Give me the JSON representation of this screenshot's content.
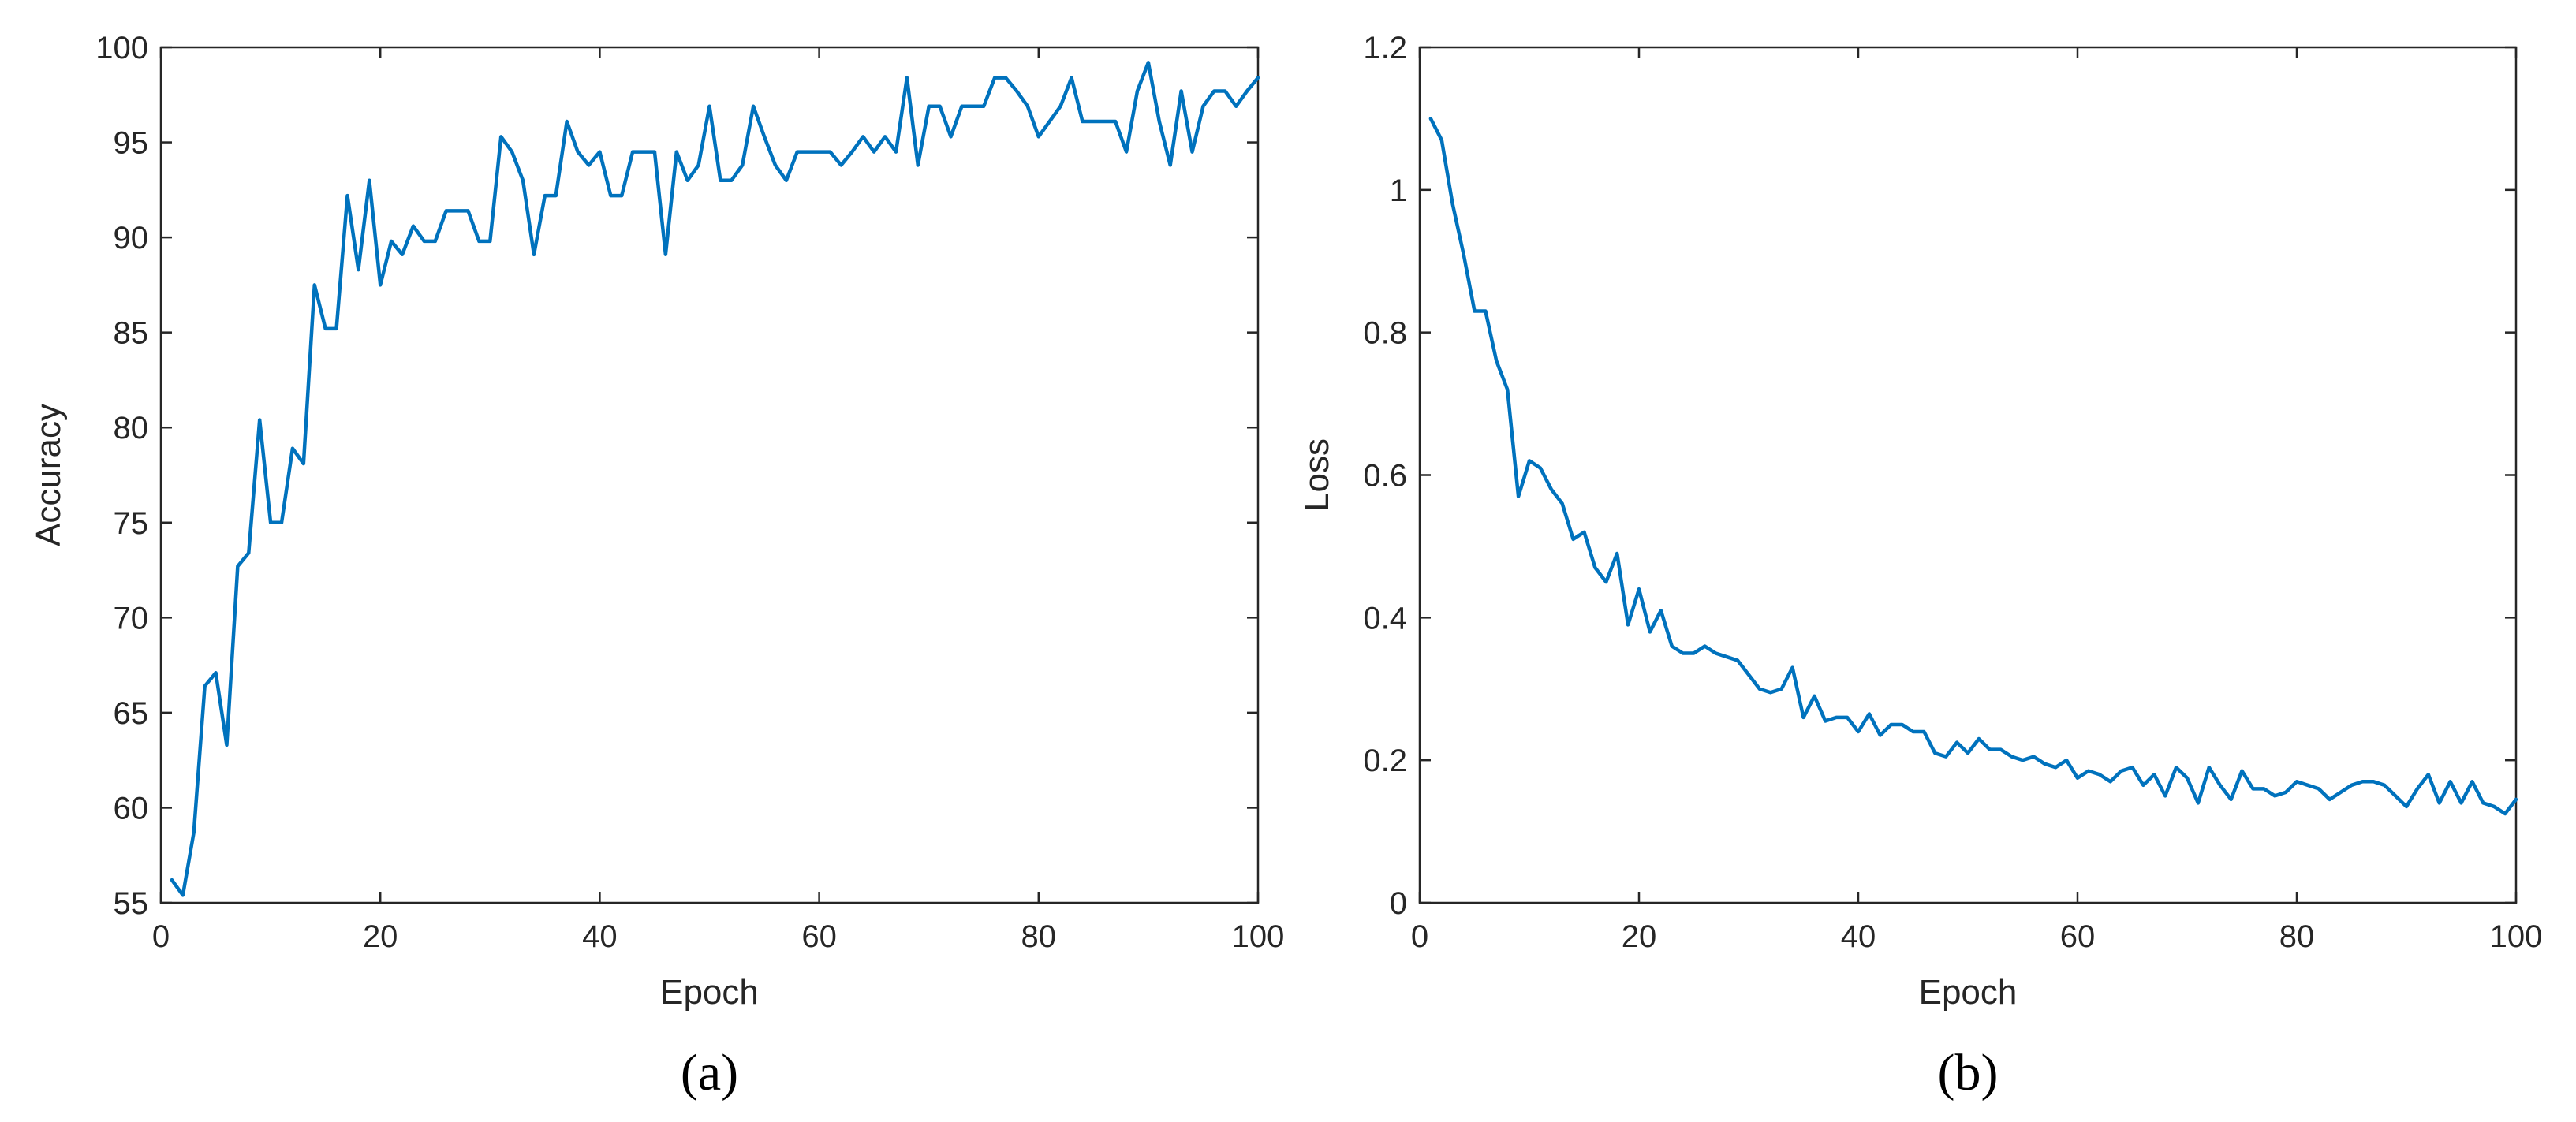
{
  "colors": {
    "series": "#0072BD",
    "axis": "#262626",
    "background": "#ffffff"
  },
  "chart_data": [
    {
      "type": "line",
      "caption": "(a)",
      "title": "",
      "xlabel": "Epoch",
      "ylabel": "Accuracy",
      "xlim": [
        0,
        100
      ],
      "ylim": [
        55,
        100
      ],
      "xticks": [
        0,
        20,
        40,
        60,
        80,
        100
      ],
      "xtick_labels": [
        "0",
        "20",
        "40",
        "60",
        "80",
        "100"
      ],
      "yticks": [
        55,
        60,
        65,
        70,
        75,
        80,
        85,
        90,
        95,
        100
      ],
      "ytick_labels": [
        "55",
        "60",
        "65",
        "70",
        "75",
        "80",
        "85",
        "90",
        "95",
        "100"
      ],
      "grid": false,
      "legend": false,
      "series": [
        {
          "x": [
            1,
            2,
            3,
            4,
            5,
            6,
            7,
            8,
            9,
            10,
            11,
            12,
            13,
            14,
            15,
            16,
            17,
            18,
            19,
            20,
            21,
            22,
            23,
            24,
            25,
            26,
            27,
            28,
            29,
            30,
            31,
            32,
            33,
            34,
            35,
            36,
            37,
            38,
            39,
            40,
            41,
            42,
            43,
            44,
            45,
            46,
            47,
            48,
            49,
            50,
            51,
            52,
            53,
            54,
            55,
            56,
            57,
            58,
            59,
            60,
            61,
            62,
            63,
            64,
            65,
            66,
            67,
            68,
            69,
            70,
            71,
            72,
            73,
            74,
            75,
            76,
            77,
            78,
            79,
            80,
            81,
            82,
            83,
            84,
            85,
            86,
            87,
            88,
            89,
            90,
            91,
            92,
            93,
            94,
            95,
            96,
            97,
            98,
            99,
            100
          ],
          "values": [
            56.2,
            55.4,
            58.7,
            66.4,
            67.1,
            63.3,
            72.7,
            73.4,
            80.4,
            75.0,
            75.0,
            78.9,
            78.1,
            87.5,
            85.2,
            85.2,
            92.2,
            88.3,
            93.0,
            87.5,
            89.8,
            89.1,
            90.6,
            89.8,
            89.8,
            91.4,
            91.4,
            91.4,
            89.8,
            89.8,
            95.3,
            94.5,
            93.0,
            89.1,
            92.2,
            92.2,
            96.1,
            94.5,
            93.8,
            94.5,
            92.2,
            92.2,
            94.5,
            94.5,
            94.5,
            89.1,
            94.5,
            93.0,
            93.8,
            96.9,
            93.0,
            93.0,
            93.8,
            96.9,
            95.3,
            93.8,
            93.0,
            94.5,
            94.5,
            94.5,
            94.5,
            93.8,
            94.5,
            95.3,
            94.5,
            95.3,
            94.5,
            98.4,
            93.8,
            96.9,
            96.9,
            95.3,
            96.9,
            96.9,
            96.9,
            98.4,
            98.4,
            97.7,
            96.9,
            95.3,
            96.1,
            96.9,
            98.4,
            96.1,
            96.1,
            96.1,
            96.1,
            94.5,
            97.7,
            99.2,
            96.1,
            93.8,
            97.7,
            94.5,
            96.9,
            97.7,
            97.7,
            96.9,
            97.7,
            98.4
          ]
        }
      ]
    },
    {
      "type": "line",
      "caption": "(b)",
      "title": "",
      "xlabel": "Epoch",
      "ylabel": "Loss",
      "xlim": [
        0,
        100
      ],
      "ylim": [
        0,
        1.2
      ],
      "xticks": [
        0,
        20,
        40,
        60,
        80,
        100
      ],
      "xtick_labels": [
        "0",
        "20",
        "40",
        "60",
        "80",
        "100"
      ],
      "yticks": [
        0,
        0.2,
        0.4,
        0.6,
        0.8,
        1,
        1.2
      ],
      "ytick_labels": [
        "0",
        "0.2",
        "0.4",
        "0.6",
        "0.8",
        "1",
        "1.2"
      ],
      "grid": false,
      "legend": false,
      "series": [
        {
          "x": [
            1,
            2,
            3,
            4,
            5,
            6,
            7,
            8,
            9,
            10,
            11,
            12,
            13,
            14,
            15,
            16,
            17,
            18,
            19,
            20,
            21,
            22,
            23,
            24,
            25,
            26,
            27,
            28,
            29,
            30,
            31,
            32,
            33,
            34,
            35,
            36,
            37,
            38,
            39,
            40,
            41,
            42,
            43,
            44,
            45,
            46,
            47,
            48,
            49,
            50,
            51,
            52,
            53,
            54,
            55,
            56,
            57,
            58,
            59,
            60,
            61,
            62,
            63,
            64,
            65,
            66,
            67,
            68,
            69,
            70,
            71,
            72,
            73,
            74,
            75,
            76,
            77,
            78,
            79,
            80,
            81,
            82,
            83,
            84,
            85,
            86,
            87,
            88,
            89,
            90,
            91,
            92,
            93,
            94,
            95,
            96,
            97,
            98,
            99,
            100
          ],
          "values": [
            1.1,
            1.07,
            0.98,
            0.91,
            0.83,
            0.83,
            0.76,
            0.72,
            0.57,
            0.62,
            0.61,
            0.58,
            0.56,
            0.51,
            0.52,
            0.47,
            0.45,
            0.49,
            0.39,
            0.44,
            0.38,
            0.41,
            0.36,
            0.35,
            0.35,
            0.36,
            0.35,
            0.345,
            0.34,
            0.32,
            0.3,
            0.295,
            0.3,
            0.33,
            0.26,
            0.29,
            0.255,
            0.26,
            0.26,
            0.24,
            0.265,
            0.235,
            0.25,
            0.25,
            0.24,
            0.24,
            0.21,
            0.205,
            0.225,
            0.21,
            0.23,
            0.215,
            0.215,
            0.205,
            0.2,
            0.205,
            0.195,
            0.19,
            0.2,
            0.175,
            0.185,
            0.18,
            0.17,
            0.185,
            0.19,
            0.165,
            0.18,
            0.15,
            0.19,
            0.175,
            0.14,
            0.19,
            0.165,
            0.145,
            0.185,
            0.16,
            0.16,
            0.15,
            0.155,
            0.17,
            0.165,
            0.16,
            0.145,
            0.155,
            0.165,
            0.17,
            0.17,
            0.165,
            0.15,
            0.135,
            0.16,
            0.18,
            0.14,
            0.17,
            0.14,
            0.17,
            0.14,
            0.135,
            0.125,
            0.145
          ]
        }
      ]
    }
  ]
}
